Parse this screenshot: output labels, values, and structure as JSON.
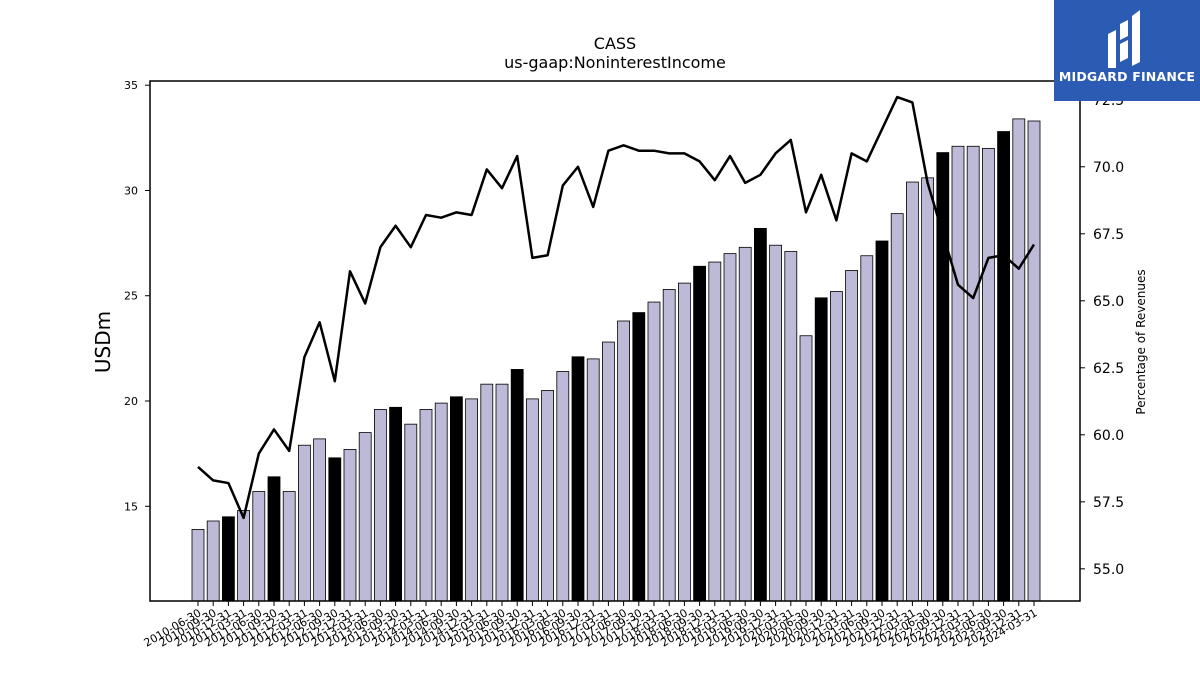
{
  "brand": {
    "name": "MIDGARD FINANCE",
    "color": "#2b5bb3"
  },
  "chart_data": {
    "type": "bar",
    "title": "CASS",
    "subtitle": "us-gaap:NoninterestIncome",
    "ylabel": "USDm",
    "y2label": "Percentage of Revenues",
    "ylim": [
      10.5,
      35.2
    ],
    "yticks": [
      15,
      20,
      25,
      30,
      35
    ],
    "y2lim": [
      53.8,
      73.2
    ],
    "y2ticks": [
      55.0,
      57.5,
      60.0,
      62.5,
      65.0,
      67.5,
      70.0,
      72.5
    ],
    "colors": {
      "bar": "#bdbad8",
      "bar_highlight": "#000000",
      "line": "#000000"
    },
    "categories": [
      "2010-06-30",
      "2010-09-30",
      "2010-12-31",
      "2011-03-31",
      "2011-06-30",
      "2011-09-30",
      "2011-12-31",
      "2012-03-31",
      "2012-06-30",
      "2012-09-30",
      "2012-12-31",
      "2013-03-31",
      "2013-06-30",
      "2013-09-30",
      "2013-12-31",
      "2014-03-31",
      "2014-06-30",
      "2014-09-30",
      "2014-12-31",
      "2015-03-31",
      "2015-06-30",
      "2015-09-30",
      "2015-12-31",
      "2016-03-31",
      "2016-06-30",
      "2016-09-30",
      "2016-12-31",
      "2017-03-31",
      "2017-06-30",
      "2017-09-30",
      "2017-12-31",
      "2018-03-31",
      "2018-06-30",
      "2018-09-30",
      "2018-12-31",
      "2019-03-31",
      "2019-06-30",
      "2019-09-30",
      "2019-12-31",
      "2020-03-31",
      "2020-06-30",
      "2020-09-30",
      "2020-12-31",
      "2021-03-31",
      "2021-06-30",
      "2021-09-30",
      "2021-12-31",
      "2022-03-31",
      "2022-06-30",
      "2022-09-30",
      "2022-12-31",
      "2023-03-31",
      "2023-06-30",
      "2023-09-30",
      "2023-12-31",
      "2024-03-31"
    ],
    "tick_labels": [
      "2010-06-30",
      "2010-09-30",
      "2010-12-31",
      "2011-03-31",
      "2011-06-30",
      "2011-09-30",
      "2011-12-31",
      "2012-03-31",
      "2012-06-30",
      "2012-09-30",
      "2012-12-31",
      "2013-03-31",
      "2013-06-30",
      "2013-09-30",
      "2013-12-31",
      "2014-03-31",
      "2014-06-30",
      "2014-09-30",
      "2014-12-31",
      "2015-03-31",
      "2015-06-30",
      "2015-09-30",
      "2015-12-31",
      "2016-03-31",
      "2016-06-30",
      "2016-09-30",
      "2016-12-31",
      "2017-03-31",
      "2017-06-30",
      "2017-09-30",
      "2017-12-31",
      "2018-03-31",
      "2018-06-30",
      "2018-09-30",
      "2018-12-31",
      "2019-03-31",
      "2019-06-30",
      "2019-09-30",
      "2019-12-31",
      "2020-03-31",
      "2020-06-30",
      "2020-09-30",
      "2020-12-31",
      "2021-03-31",
      "2021-06-30",
      "2021-09-30",
      "2021-12-31",
      "2022-03-31",
      "2022-06-30",
      "2022-09-30",
      "2022-12-31",
      "2023-03-31",
      "2023-06-30",
      "2023-09-30",
      "2023-12-31",
      "2024-03-31"
    ],
    "values": [
      13.9,
      14.3,
      14.5,
      14.8,
      15.7,
      16.4,
      15.7,
      17.9,
      18.2,
      17.3,
      17.7,
      18.5,
      19.6,
      19.7,
      18.9,
      19.6,
      19.9,
      20.2,
      20.1,
      20.8,
      20.8,
      21.5,
      20.1,
      20.5,
      21.4,
      22.1,
      22.0,
      22.8,
      23.8,
      24.2,
      24.7,
      25.3,
      25.6,
      26.4,
      26.6,
      27.0,
      27.3,
      28.2,
      27.4,
      27.1,
      23.1,
      24.9,
      25.2,
      26.2,
      26.9,
      27.6,
      28.9,
      30.4,
      30.6,
      31.8,
      32.1,
      32.1,
      32.0,
      32.8,
      33.4,
      33.3
    ],
    "highlight": [
      false,
      false,
      true,
      false,
      false,
      true,
      false,
      false,
      false,
      true,
      false,
      false,
      false,
      true,
      false,
      false,
      false,
      true,
      false,
      false,
      false,
      true,
      false,
      false,
      false,
      true,
      false,
      false,
      false,
      true,
      false,
      false,
      false,
      true,
      false,
      false,
      false,
      true,
      false,
      false,
      false,
      true,
      false,
      false,
      false,
      true,
      false,
      false,
      false,
      true,
      false,
      false,
      false,
      true,
      false,
      false
    ],
    "line_series": {
      "name": "Percentage of Revenues",
      "values": [
        58.8,
        58.3,
        58.2,
        56.9,
        59.3,
        60.2,
        59.4,
        62.9,
        64.2,
        62.0,
        66.1,
        64.9,
        67.0,
        67.8,
        67.0,
        68.2,
        68.1,
        68.3,
        68.2,
        69.9,
        69.2,
        70.4,
        66.6,
        66.7,
        69.3,
        70.0,
        68.5,
        70.6,
        70.8,
        70.6,
        70.6,
        70.5,
        70.5,
        70.2,
        69.5,
        70.4,
        69.4,
        69.7,
        70.5,
        71.0,
        68.3,
        69.7,
        68.0,
        70.5,
        70.2,
        71.4,
        72.6,
        72.4,
        69.4,
        67.5,
        65.6,
        65.1,
        66.6,
        66.7,
        66.2,
        67.1
      ]
    }
  }
}
